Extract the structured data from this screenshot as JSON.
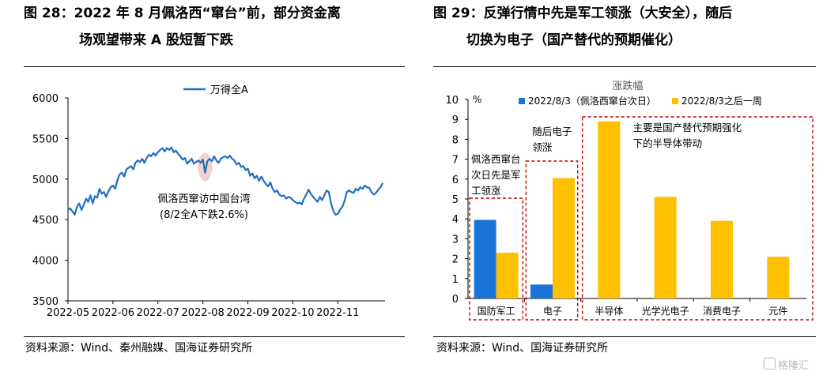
{
  "left": {
    "title_line1": "图 28：2022 年 8 月佩洛西“窜台”前，部分资金离",
    "title_line2": "场观望带来 A 股短暂下跌",
    "source": "资料来源：Wind、秦州融媒、国海证券研究所"
  },
  "right": {
    "title_line1": "图 29：反弹行情中先是军工领涨（大安全），随后",
    "title_line2": "切换为电子（国产替代的预期催化）",
    "source": "资料来源：Wind、国海证券研究所"
  },
  "watermark": "格隆汇",
  "colors": {
    "line": "#1f6fc0",
    "blue": "#1a73d6",
    "orange": "#ffc000",
    "box": "#c00000",
    "marker": "#f4c7c7"
  },
  "chart_data": [
    {
      "type": "line",
      "title": "",
      "xlabel": "",
      "ylabel": "",
      "ylim": [
        3500,
        6000
      ],
      "yticks": [
        "6000",
        "5500",
        "5000",
        "4500",
        "4000",
        "3500"
      ],
      "ytick_values": [
        6000,
        5500,
        5000,
        4500,
        4000,
        3500
      ],
      "xticks": [
        "2022-05",
        "2022-06",
        "2022-07",
        "2022-08",
        "2022-09",
        "2022-10",
        "2022-11"
      ],
      "xtick_values": [
        0,
        1,
        2,
        3,
        4,
        5,
        6
      ],
      "xlim": [
        0,
        7.05
      ],
      "grid": false,
      "legend_position": "top-center",
      "series": [
        {
          "name": "万得全A",
          "x": [
            0,
            0.05,
            0.1,
            0.15,
            0.2,
            0.25,
            0.3,
            0.35,
            0.4,
            0.45,
            0.5,
            0.55,
            0.6,
            0.65,
            0.7,
            0.75,
            0.8,
            0.85,
            0.9,
            0.95,
            1.0,
            1.05,
            1.1,
            1.15,
            1.2,
            1.25,
            1.3,
            1.35,
            1.4,
            1.45,
            1.5,
            1.55,
            1.6,
            1.65,
            1.7,
            1.75,
            1.8,
            1.85,
            1.9,
            1.95,
            2.0,
            2.05,
            2.1,
            2.15,
            2.2,
            2.25,
            2.3,
            2.35,
            2.4,
            2.45,
            2.5,
            2.55,
            2.6,
            2.65,
            2.7,
            2.75,
            2.8,
            2.85,
            2.9,
            2.95,
            3.0,
            3.05,
            3.1,
            3.15,
            3.2,
            3.25,
            3.3,
            3.35,
            3.4,
            3.45,
            3.5,
            3.55,
            3.6,
            3.65,
            3.7,
            3.75,
            3.8,
            3.85,
            3.9,
            3.95,
            4.0,
            4.05,
            4.1,
            4.15,
            4.2,
            4.25,
            4.3,
            4.35,
            4.4,
            4.45,
            4.5,
            4.55,
            4.6,
            4.65,
            4.7,
            4.75,
            4.8,
            4.85,
            4.9,
            4.95,
            5.0,
            5.05,
            5.1,
            5.15,
            5.2,
            5.25,
            5.3,
            5.35,
            5.4,
            5.45,
            5.5,
            5.55,
            5.6,
            5.65,
            5.7,
            5.75,
            5.8,
            5.85,
            5.9,
            5.95,
            6.0,
            6.05,
            6.1,
            6.15,
            6.2,
            6.25,
            6.3,
            6.35,
            6.4,
            6.45,
            6.5,
            6.55,
            6.6,
            6.65,
            6.7,
            6.75,
            6.8,
            6.85,
            6.9,
            6.95,
            7.0
          ],
          "values": [
            4620,
            4640,
            4600,
            4560,
            4660,
            4700,
            4620,
            4680,
            4760,
            4720,
            4800,
            4700,
            4790,
            4770,
            4880,
            4820,
            4840,
            4780,
            4850,
            4900,
            4920,
            4880,
            4990,
            5060,
            5080,
            5030,
            5120,
            5140,
            5160,
            5120,
            5200,
            5230,
            5210,
            5250,
            5200,
            5260,
            5300,
            5280,
            5320,
            5290,
            5330,
            5360,
            5380,
            5340,
            5380,
            5360,
            5390,
            5330,
            5350,
            5310,
            5280,
            5240,
            5260,
            5190,
            5220,
            5250,
            5190,
            5210,
            5230,
            5200,
            5240,
            5080,
            5220,
            5250,
            5220,
            5280,
            5230,
            5200,
            5250,
            5270,
            5280,
            5260,
            5290,
            5250,
            5230,
            5180,
            5200,
            5150,
            5160,
            5110,
            5130,
            5040,
            5070,
            5010,
            5040,
            4980,
            5030,
            4980,
            4940,
            4910,
            4960,
            4880,
            4840,
            4860,
            4810,
            4790,
            4800,
            4760,
            4780,
            4770,
            4740,
            4720,
            4700,
            4710,
            4690,
            4760,
            4810,
            4870,
            4820,
            4780,
            4750,
            4720,
            4780,
            4740,
            4800,
            4860,
            4840,
            4700,
            4610,
            4560,
            4570,
            4620,
            4660,
            4730,
            4840,
            4860,
            4840,
            4830,
            4880,
            4860,
            4900,
            4880,
            4920,
            4900,
            4890,
            4840,
            4810,
            4830,
            4870,
            4900,
            4950
          ]
        }
      ],
      "annotations": [
        "佩洛西窜访中国台湾",
        "(8/2全A下跌2.6%)"
      ]
    },
    {
      "type": "bar",
      "title": "涨跌幅",
      "ylabel_unit": "%",
      "xlabel": "",
      "ylim": [
        0,
        10
      ],
      "yticks": [
        "10",
        "9",
        "8",
        "7",
        "6",
        "5",
        "4",
        "3",
        "2",
        "1",
        "0"
      ],
      "ytick_values": [
        10,
        9,
        8,
        7,
        6,
        5,
        4,
        3,
        2,
        1,
        0
      ],
      "categories": [
        "国防军工",
        "电子",
        "半导体",
        "光学光电子",
        "消费电子",
        "元件"
      ],
      "grid": false,
      "legend_position": "top",
      "series": [
        {
          "name": "2022/8/3（佩洛西窜台次日）",
          "values": [
            3.95,
            0.7,
            null,
            null,
            null,
            null
          ]
        },
        {
          "name": "2022/8/3之后一周",
          "values": [
            2.3,
            6.05,
            8.9,
            5.1,
            3.9,
            2.1
          ]
        }
      ],
      "annotations": [
        "佩洛西窜台次日先是军工领涨",
        "随后电子领涨",
        "主要是国产替代预期强化下的半导体带动"
      ]
    }
  ]
}
